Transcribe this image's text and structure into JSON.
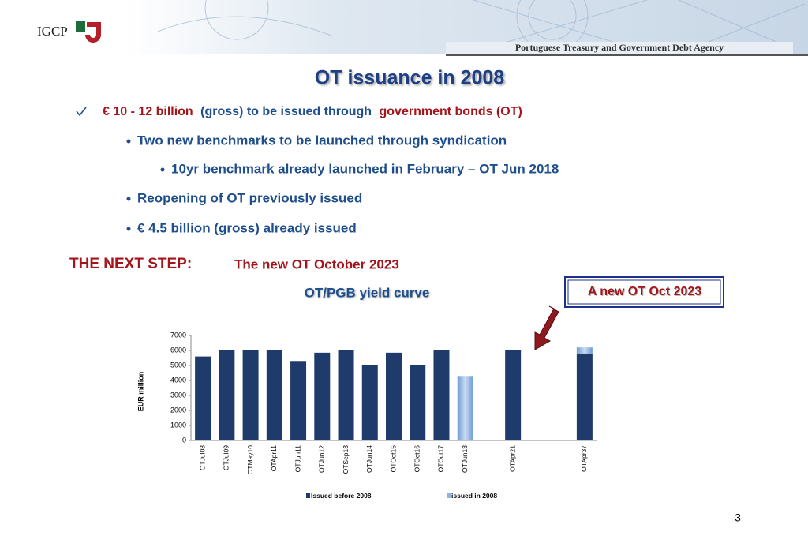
{
  "slide": {
    "logo": "IGCP",
    "agency": "Portuguese Treasury and Government Debt Agency",
    "title": "OT issuance in 2008",
    "check": [
      "€ 10 - 12 billion",
      "(gross) to be issued through",
      "government bonds (OT)"
    ],
    "bullets": [
      "Two new benchmarks to be launched through syndication",
      "10yr benchmark already launched in February – OT Jun 2018",
      "Reopening of OT previously issued",
      "€ 4.5 billion (gross) already issued"
    ],
    "next_step": "THE NEXT STEP:",
    "next_step_text": "The new OT October 2023",
    "callout": "A new OT Oct 2023",
    "page_number": 3
  },
  "chart_data": {
    "type": "bar",
    "stacked": true,
    "title": "OT/PGB yield curve",
    "y_label": "EUR million",
    "categories": [
      "OTJul08",
      "OTJul09",
      "OTMay10",
      "OTApr11",
      "OTJun11",
      "OTJun12",
      "OTSep13",
      "OTJun14",
      "OTOct15",
      "OTOct16",
      "OTOct17",
      "OTJun18",
      null,
      "OTApr21",
      null,
      null,
      "OTApr37"
    ],
    "series": [
      {
        "name": "Issued before 2008",
        "color": "#1f3b6b",
        "values": [
          5600,
          6000,
          6050,
          6000,
          5250,
          5850,
          6050,
          5000,
          5850,
          5000,
          6050,
          null,
          null,
          6050,
          null,
          null,
          5800
        ]
      },
      {
        "name": "issued in 2008",
        "color": "#8fb3e0",
        "values": [
          null,
          null,
          null,
          null,
          null,
          null,
          null,
          null,
          null,
          null,
          null,
          4250,
          null,
          null,
          null,
          null,
          400
        ]
      }
    ],
    "ylim": [
      0,
      7000
    ],
    "yticks": [
      0,
      1000,
      2000,
      3000,
      4000,
      5000,
      6000,
      7000
    ],
    "legend": "bottom"
  }
}
